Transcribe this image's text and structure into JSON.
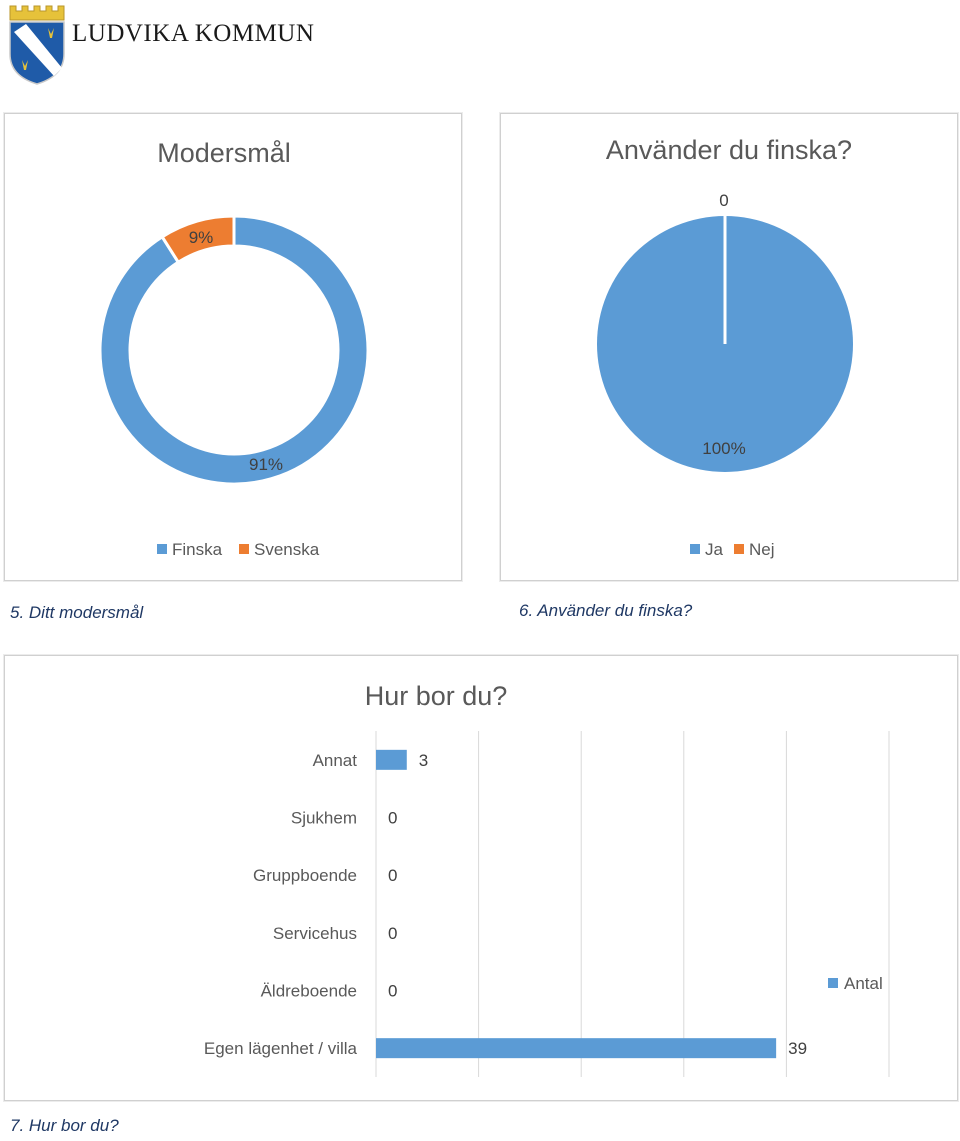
{
  "header": {
    "logo_text": "LUDVIKA KOMMUN",
    "colors": {
      "shield_blue": "#1f5ba8",
      "crown_gold": "#e6c23a"
    }
  },
  "colors": {
    "blue": "#5b9bd5",
    "orange": "#ed7d31",
    "title_gray": "#595959",
    "label_gray": "#404040"
  },
  "captions": {
    "q5": "5. Ditt modersmål",
    "q6": "6. Använder du finska?",
    "q7": "7. Hur bor du?"
  },
  "chart_data": [
    {
      "type": "pie",
      "variant": "doughnut",
      "title": "Modersmål",
      "categories": [
        "Finska",
        "Svenska"
      ],
      "values": [
        91,
        9
      ],
      "data_labels": [
        "91%",
        "9%"
      ],
      "colors": [
        "#5b9bd5",
        "#ed7d31"
      ],
      "legend": {
        "position": "bottom",
        "entries": [
          "Finska",
          "Svenska"
        ]
      }
    },
    {
      "type": "pie",
      "title": "Använder du finska?",
      "categories": [
        "Ja",
        "Nej"
      ],
      "values": [
        100,
        0
      ],
      "data_labels": [
        "100%",
        "0"
      ],
      "colors": [
        "#5b9bd5",
        "#ed7d31"
      ],
      "legend": {
        "position": "bottom",
        "entries": [
          "Ja",
          "Nej"
        ]
      }
    },
    {
      "type": "bar",
      "orientation": "horizontal",
      "title": "Hur bor du?",
      "categories": [
        "Annat",
        "Sjukhem",
        "Gruppboende",
        "Servicehus",
        "Äldreboende",
        "Egen lägenhet / villa"
      ],
      "series": [
        {
          "name": "Antal",
          "values": [
            3,
            0,
            0,
            0,
            0,
            39
          ],
          "color": "#5b9bd5"
        }
      ],
      "xlim": [
        0,
        50
      ],
      "grid": true,
      "legend": {
        "position": "right",
        "entries": [
          "Antal"
        ]
      }
    }
  ]
}
